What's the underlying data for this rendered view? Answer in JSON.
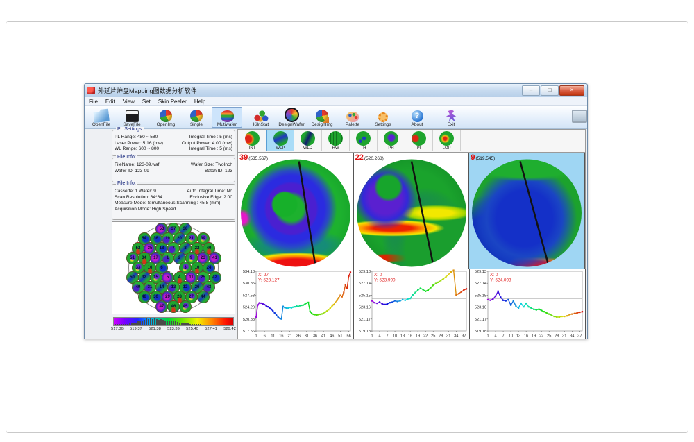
{
  "colors": {
    "titlebar_blue": "#c7dbf0",
    "close_red": "#d95f44",
    "annotation_red": "#e02020",
    "selected_map_bg": "#9fd6f3",
    "selected_tab_bg": "#aadcf7"
  },
  "window": {
    "title": "外延片炉盘Mapping图数据分析软件",
    "buttons": [
      {
        "name": "minimize",
        "glyph": "–"
      },
      {
        "name": "maximize",
        "glyph": "□"
      },
      {
        "name": "close",
        "glyph": "×"
      }
    ]
  },
  "menu": {
    "items": [
      "File",
      "Edit",
      "View",
      "Set",
      "Skin Peeler",
      "Help"
    ]
  },
  "toolbar": {
    "items": [
      {
        "label": "OpenFile",
        "icon": "open-file"
      },
      {
        "label": "SaveFile",
        "icon": "save-file"
      },
      {
        "label": "OpenImg",
        "icon": "open-img"
      },
      {
        "label": "Single",
        "icon": "single"
      },
      {
        "label": "Mutiwafer",
        "icon": "multiwafer",
        "selected": true
      },
      {
        "label": "KilnStat",
        "icon": "kiln-stat"
      },
      {
        "label": "DesignWafer",
        "icon": "design-wafer"
      },
      {
        "label": "DesignImg",
        "icon": "design-img"
      },
      {
        "label": "Palette",
        "icon": "palette"
      },
      {
        "label": "Settings",
        "icon": "settings"
      },
      {
        "label": "About",
        "icon": "about",
        "glyph": "?"
      },
      {
        "label": "Exit",
        "icon": "exit"
      }
    ]
  },
  "pl_settings": {
    "title": "PL Settings",
    "rows": [
      [
        "PL Range: 480 ~ 580",
        "Integral Time : 5 (ms)"
      ],
      [
        "Laser Power: 5.16 (mw)",
        "Output Power: 4.00 (mw)"
      ],
      [
        "WL Range: 600 ~ 800",
        "Integral Time : 5 (ms)"
      ]
    ]
  },
  "file_info1": {
    "title": "File Info:",
    "rows": [
      [
        "FileName: 123-09.waf",
        "Wafer Size: TwoInch"
      ],
      [
        "Wafer ID: 123-09",
        "Batch ID: 123"
      ]
    ]
  },
  "file_info2": {
    "title": "File Info:",
    "rows": [
      [
        "Cassette: 1   Wafer: 9",
        "Auto Integral Time: No"
      ],
      [
        "Scan Resolution: 64*64",
        "Exclusive Edge: 2.00"
      ],
      [
        "Measure Mode: Simultaneous Scanning : 45.8 (mm)",
        ""
      ],
      [
        "Acquisition Mode: High Speed",
        ""
      ]
    ]
  },
  "disk": {
    "rows": [
      [
        53,
        37,
        38
      ],
      [
        54,
        36,
        19,
        20,
        21,
        39
      ],
      [
        52,
        35,
        18,
        7,
        8,
        22,
        40
      ],
      [
        51,
        34,
        17,
        1,
        2,
        9,
        23,
        41
      ],
      [
        33,
        16,
        6,
        null,
        3,
        10,
        24
      ],
      [
        50,
        32,
        15,
        5,
        4,
        11,
        25,
        42
      ],
      [
        49,
        31,
        14,
        13,
        12,
        26,
        43
      ],
      [
        48,
        30,
        29,
        28,
        27,
        44
      ],
      [
        47,
        46,
        45
      ]
    ]
  },
  "colorbar": {
    "labels": [
      "517.36",
      "519.37",
      "521.38",
      "523.39",
      "525.40",
      "527.41",
      "529.42"
    ],
    "hist": [
      0.05,
      0.07,
      0.08,
      0.1,
      0.12,
      0.16,
      0.2,
      0.26,
      0.24,
      0.3,
      0.4,
      0.5,
      0.65,
      0.55,
      0.75,
      0.9,
      0.8,
      1.0,
      0.85,
      0.95,
      0.8,
      0.75,
      0.8,
      0.7,
      0.65,
      0.68,
      0.6,
      0.55,
      0.58,
      0.5,
      0.45,
      0.4,
      0.38,
      0.33,
      0.3,
      0.26,
      0.22,
      0.19,
      0.16,
      0.13,
      0.1,
      0.08
    ]
  },
  "tabs": {
    "items": [
      {
        "label": "INT"
      },
      {
        "label": "WLP",
        "selected": true
      },
      {
        "label": "WLD"
      },
      {
        "label": "HW"
      },
      {
        "label": "TH"
      },
      {
        "label": "PR"
      },
      {
        "label": "PI"
      },
      {
        "label": "LOP"
      }
    ]
  },
  "maps": [
    {
      "num": "39",
      "value": "(535.567)",
      "selected": false
    },
    {
      "num": "22",
      "value": "(520.268)",
      "selected": false
    },
    {
      "num": "9",
      "value": "(519.545)",
      "selected": true
    }
  ],
  "chart_data": [
    {
      "type": "line",
      "title": "wafer 39 cross-section profile",
      "ylim": [
        517.56,
        534.18
      ],
      "yticks": [
        "534.18",
        "530.85",
        "527.53",
        "524.20",
        "520.88",
        "517.56"
      ],
      "xticks": [
        1,
        6,
        11,
        16,
        21,
        26,
        31,
        36,
        41,
        46,
        51,
        56
      ],
      "ref": 524.2,
      "annotation": {
        "x": "X: 27",
        "y": "Y: 523.127"
      },
      "values": [
        521.4,
        524.8,
        525.4,
        525.3,
        525.1,
        524.9,
        524.6,
        524.3,
        524.0,
        523.6,
        523.1,
        522.6,
        522.0,
        521.5,
        521.1,
        520.9,
        524.4,
        524.1,
        523.9,
        523.9,
        524.1,
        524.0,
        524.2,
        524.3,
        524.5,
        524.4,
        524.6,
        524.7,
        524.8,
        525.0,
        525.3,
        525.5,
        523.0,
        522.4,
        522.2,
        522.1,
        522.0,
        522.1,
        522.2,
        522.3,
        522.5,
        522.8,
        523.1,
        523.5,
        523.9,
        524.4,
        524.9,
        525.5,
        526.1,
        526.8,
        527.5,
        527.1,
        528.3,
        530.4,
        529.4,
        532.9,
        533.9
      ]
    },
    {
      "type": "line",
      "title": "wafer 22 cross-section profile",
      "ylim": [
        519.18,
        529.13
      ],
      "yticks": [
        "529.13",
        "527.14",
        "525.15",
        "523.16",
        "521.17",
        "519.18"
      ],
      "xticks": [
        1,
        4,
        7,
        10,
        13,
        16,
        19,
        22,
        25,
        28,
        31,
        34,
        37
      ],
      "ref": 524.6,
      "annotation": {
        "x": "X: 0",
        "y": "Y: 523.990"
      },
      "values": [
        524.2,
        523.9,
        523.8,
        524.0,
        523.7,
        523.6,
        523.7,
        523.9,
        524.0,
        524.2,
        524.1,
        524.2,
        524.4,
        524.3,
        524.5,
        524.6,
        525.2,
        525.6,
        526.0,
        526.3,
        526.1,
        525.8,
        526.0,
        526.4,
        526.8,
        527.1,
        527.3,
        527.6,
        527.9,
        528.2,
        528.6,
        529.0,
        529.3,
        525.2,
        525.4,
        525.7,
        526.0,
        526.2
      ]
    },
    {
      "type": "line",
      "title": "wafer 9 cross-section profile",
      "ylim": [
        519.18,
        529.13
      ],
      "yticks": [
        "529.13",
        "527.14",
        "525.15",
        "523.16",
        "521.17",
        "519.18"
      ],
      "xticks": [
        1,
        4,
        7,
        10,
        13,
        16,
        19,
        22,
        25,
        28,
        31,
        34,
        37
      ],
      "ref": 524.6,
      "annotation": {
        "x": "X: 0",
        "y": "Y: 524.093"
      },
      "values": [
        524.4,
        524.3,
        524.5,
        525.0,
        525.8,
        524.8,
        524.3,
        524.2,
        524.4,
        523.5,
        524.2,
        523.3,
        523.0,
        523.8,
        523.2,
        523.8,
        523.2,
        523.0,
        522.8,
        522.7,
        522.8,
        522.6,
        522.4,
        522.2,
        522.0,
        521.8,
        521.6,
        521.5,
        521.5,
        521.6,
        521.6,
        521.7,
        521.9,
        522.0,
        522.1,
        522.2,
        522.3,
        522.4
      ]
    }
  ]
}
